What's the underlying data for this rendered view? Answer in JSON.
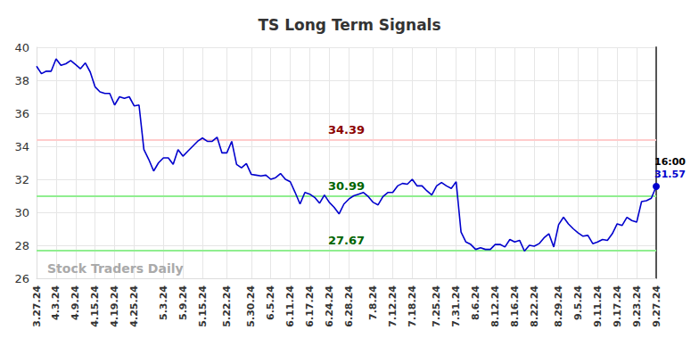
{
  "chart_data": {
    "type": "line",
    "title": "TS Long Term Signals",
    "watermark": "Stock Traders Daily",
    "categories": [
      "3.27.24",
      null,
      null,
      null,
      "4.3.24",
      null,
      null,
      null,
      "4.9.24",
      null,
      null,
      null,
      "4.15.24",
      null,
      null,
      null,
      "4.19.24",
      null,
      null,
      null,
      "4.25.24",
      null,
      null,
      null,
      null,
      null,
      "5.3.24",
      null,
      null,
      null,
      "5.9.24",
      null,
      null,
      null,
      "5.15.24",
      null,
      null,
      null,
      null,
      "5.22.24",
      null,
      null,
      null,
      null,
      "5.30.24",
      null,
      null,
      null,
      "6.5.24",
      null,
      null,
      null,
      "6.11.24",
      null,
      null,
      null,
      "6.17.24",
      null,
      null,
      null,
      "6.24.24",
      null,
      null,
      null,
      "6.28.24",
      null,
      null,
      null,
      null,
      "7.8.24",
      null,
      null,
      null,
      "7.12.24",
      null,
      null,
      null,
      "7.18.24",
      null,
      null,
      null,
      null,
      "7.25.24",
      null,
      null,
      null,
      "7.31.24",
      null,
      null,
      null,
      "8.6.24",
      null,
      null,
      null,
      "8.12.24",
      null,
      null,
      null,
      "8.16.24",
      null,
      null,
      null,
      "8.22.24",
      null,
      null,
      null,
      null,
      "8.29.24",
      null,
      null,
      null,
      "9.5.24",
      null,
      null,
      null,
      "9.11.24",
      null,
      null,
      null,
      "9.17.24",
      null,
      null,
      null,
      "9.23.24",
      null,
      null,
      null,
      "9.27.24"
    ],
    "values": [
      38.85,
      38.4,
      38.55,
      38.55,
      39.3,
      38.9,
      39.0,
      39.2,
      38.95,
      38.7,
      39.05,
      38.5,
      37.6,
      37.3,
      37.2,
      37.2,
      36.5,
      37.0,
      36.9,
      37.0,
      36.45,
      36.5,
      33.8,
      33.2,
      32.5,
      33.0,
      33.3,
      33.3,
      32.9,
      33.8,
      33.4,
      33.7,
      34.0,
      34.3,
      34.5,
      34.3,
      34.3,
      34.55,
      33.6,
      33.6,
      34.3,
      32.9,
      32.7,
      32.95,
      32.3,
      32.25,
      32.2,
      32.25,
      32.0,
      32.1,
      32.35,
      32.0,
      31.85,
      31.2,
      30.5,
      31.2,
      31.1,
      30.9,
      30.55,
      31.05,
      30.6,
      30.3,
      29.9,
      30.5,
      30.8,
      31.0,
      31.1,
      31.2,
      30.95,
      30.6,
      30.45,
      30.95,
      31.2,
      31.2,
      31.6,
      31.75,
      31.7,
      32.0,
      31.6,
      31.6,
      31.3,
      31.05,
      31.6,
      31.8,
      31.6,
      31.45,
      31.85,
      28.8,
      28.2,
      28.05,
      27.75,
      27.85,
      27.75,
      27.75,
      28.05,
      28.05,
      27.9,
      28.35,
      28.2,
      28.3,
      27.65,
      28.0,
      27.95,
      28.1,
      28.45,
      28.7,
      27.9,
      29.25,
      29.7,
      29.3,
      29.0,
      28.75,
      28.55,
      28.6,
      28.1,
      28.2,
      28.35,
      28.3,
      28.7,
      29.3,
      29.2,
      29.7,
      29.5,
      29.4,
      30.65,
      30.7,
      30.85,
      31.57
    ],
    "color": "#0000cd",
    "ylim": [
      26,
      40
    ],
    "yticks": [
      26,
      28,
      30,
      32,
      34,
      36,
      38,
      40
    ],
    "grid": true,
    "levels": [
      {
        "value": 34.39,
        "color": "#ffcccc"
      },
      {
        "value": 30.99,
        "color": "#90ee90"
      },
      {
        "value": 27.67,
        "color": "#90ee90"
      }
    ],
    "last_label": "16:00"
  }
}
